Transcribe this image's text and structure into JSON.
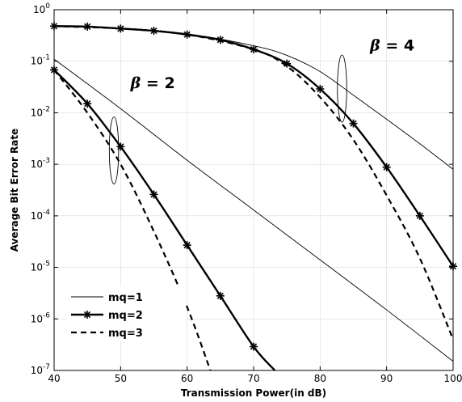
{
  "chart_data": {
    "type": "line",
    "title": "",
    "xlabel": "Transmission Power(in dB)",
    "ylabel": "Average Bit Error Rate",
    "xlim": [
      40,
      100
    ],
    "ylim": [
      1e-07,
      1
    ],
    "yscale": "log",
    "x_ticks": [
      40,
      50,
      60,
      70,
      80,
      90,
      100
    ],
    "x_tick_labels": [
      "40",
      "50",
      "60",
      "70",
      "80",
      "90",
      "100"
    ],
    "y_ticks": [
      {
        "value": 1,
        "base": "10",
        "exp": "0"
      },
      {
        "value": 0.1,
        "base": "10",
        "exp": "-1"
      },
      {
        "value": 0.01,
        "base": "10",
        "exp": "-2"
      },
      {
        "value": 0.001,
        "base": "10",
        "exp": "-3"
      },
      {
        "value": 0.0001,
        "base": "10",
        "exp": "-4"
      },
      {
        "value": 1e-05,
        "base": "10",
        "exp": "-5"
      },
      {
        "value": 1e-06,
        "base": "10",
        "exp": "-6"
      },
      {
        "value": 1e-07,
        "base": "10",
        "exp": "-7"
      }
    ],
    "legend_position": "bottom-left",
    "series": [
      {
        "name": "mq=1",
        "group": "beta2",
        "style": "thin",
        "x": [
          40,
          50,
          60,
          70,
          80,
          90,
          100
        ],
        "y": [
          0.11,
          0.012,
          0.0012,
          0.00013,
          1.4e-05,
          1.5e-06,
          1.5e-07
        ]
      },
      {
        "name": "mq=2",
        "group": "beta2",
        "style": "marker",
        "x": [
          40,
          45,
          50,
          55,
          60,
          65,
          70,
          73.2
        ],
        "y": [
          0.068,
          0.015,
          0.0022,
          0.00026,
          2.7e-05,
          2.8e-06,
          2.9e-07,
          1e-07
        ]
      },
      {
        "name": "mq=3",
        "group": "beta2",
        "style": "dashed",
        "x": [
          40,
          45,
          50,
          55,
          60,
          63.5
        ],
        "y": [
          0.068,
          0.01,
          0.001,
          5e-05,
          1.7e-06,
          1e-07
        ]
      },
      {
        "name": "mq=1",
        "group": "beta4",
        "style": "thin",
        "x": [
          40,
          50,
          60,
          70,
          75,
          80,
          85,
          90,
          95,
          100
        ],
        "y": [
          0.47,
          0.44,
          0.34,
          0.2,
          0.13,
          0.063,
          0.022,
          0.0075,
          0.0025,
          0.0008
        ]
      },
      {
        "name": "mq=2",
        "group": "beta4",
        "style": "marker",
        "x": [
          40,
          45,
          50,
          55,
          60,
          65,
          70,
          75,
          80,
          85,
          90,
          95,
          100
        ],
        "y": [
          0.48,
          0.47,
          0.43,
          0.39,
          0.33,
          0.26,
          0.17,
          0.09,
          0.029,
          0.0062,
          0.00088,
          0.0001,
          1.05e-05
        ]
      },
      {
        "name": "mq=3",
        "group": "beta4",
        "style": "dashed",
        "x": [
          40,
          50,
          60,
          70,
          75,
          80,
          85,
          90,
          95,
          100
        ],
        "y": [
          0.48,
          0.43,
          0.33,
          0.17,
          0.08,
          0.02,
          0.003,
          0.00025,
          1.5e-05,
          4e-07
        ]
      }
    ],
    "annotations": [
      {
        "symbol": "β",
        "text": " = 2",
        "x": 51.5,
        "y": 0.03
      },
      {
        "symbol": "β",
        "text": " = 4",
        "x": 87.5,
        "y": 0.16
      }
    ],
    "ellipses": [
      {
        "cx": 49.0,
        "cy_log": -2.73,
        "rx_data": 0.7,
        "ry_log": 0.65
      },
      {
        "cx": 83.3,
        "cy_log": -1.53,
        "rx_data": 0.7,
        "ry_log": 0.65
      }
    ]
  }
}
